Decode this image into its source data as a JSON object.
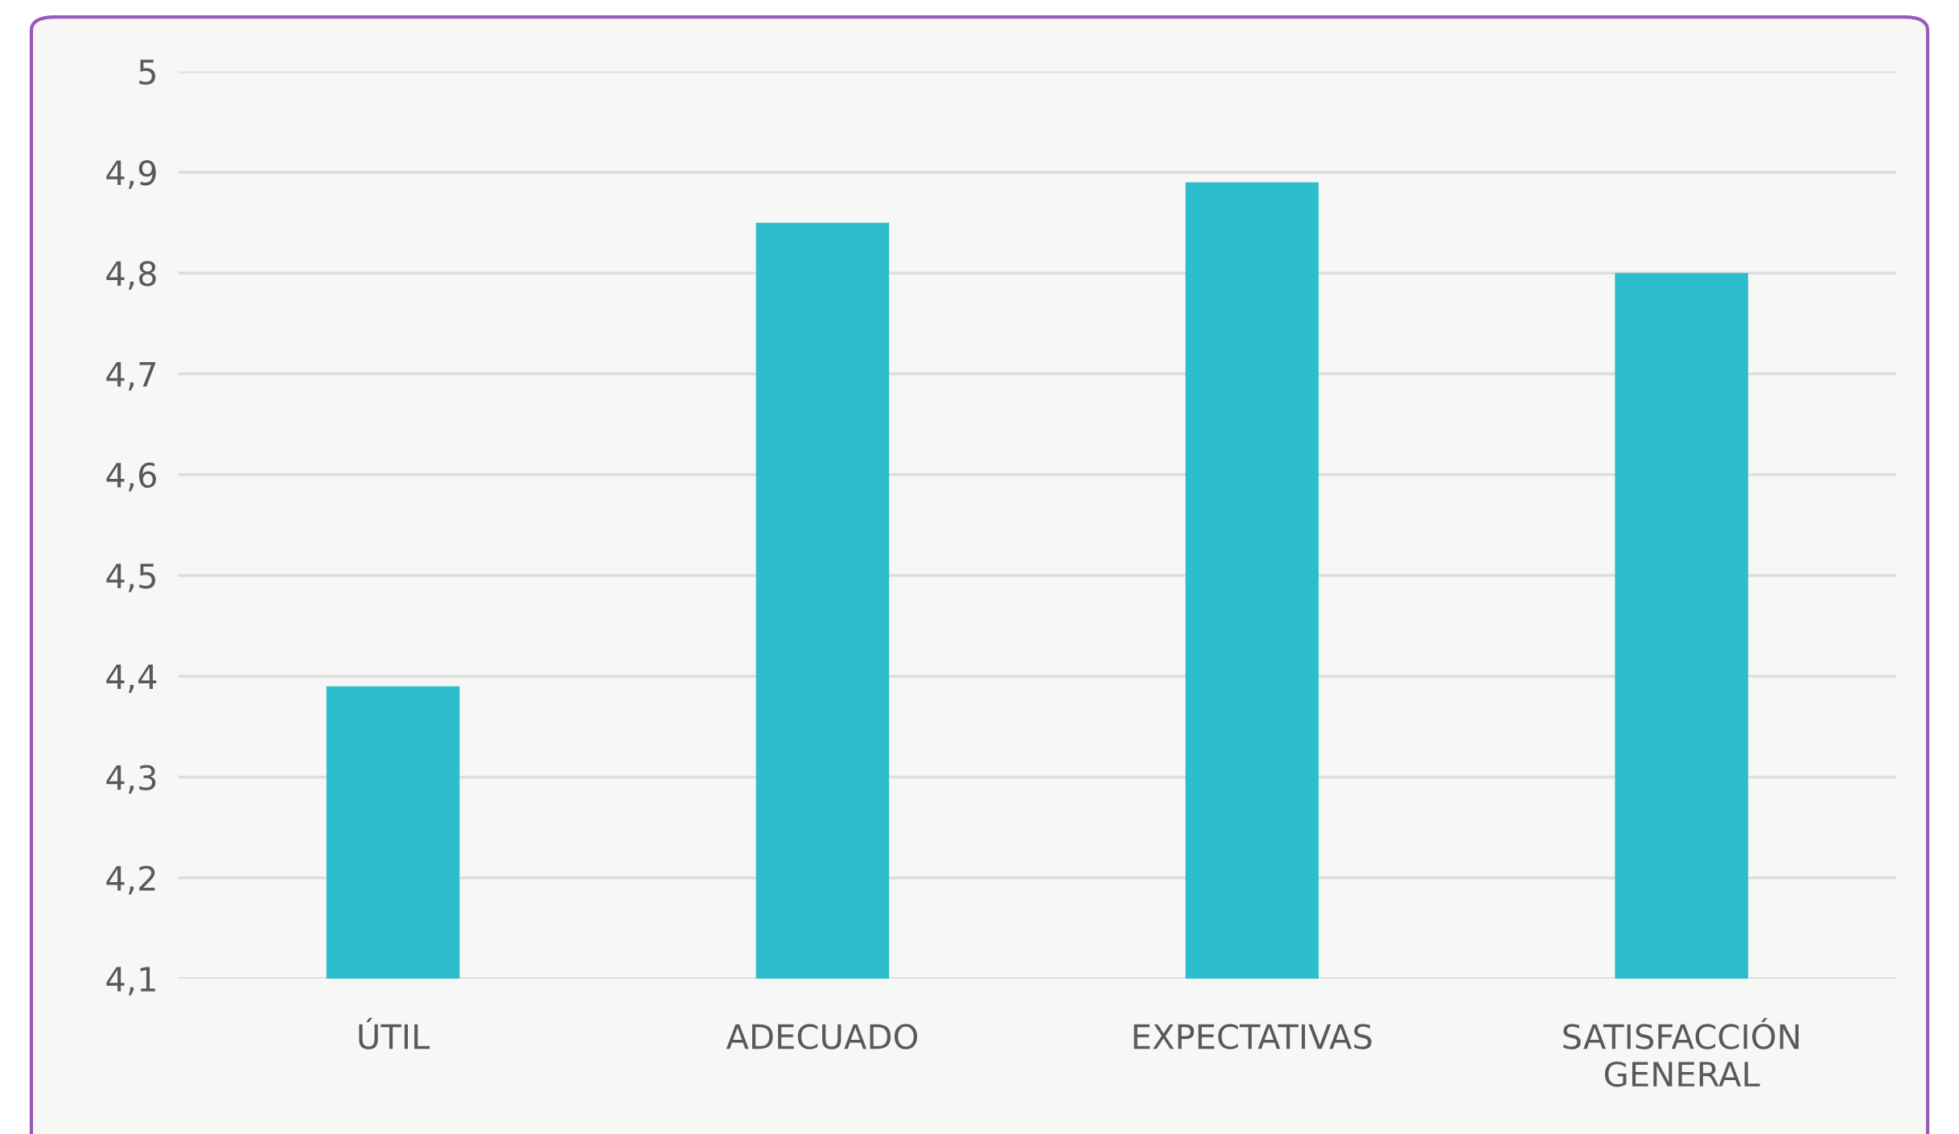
{
  "chart_data": {
    "type": "bar",
    "categories": [
      "ÚTIL",
      "ADECUADO",
      "EXPECTATIVAS",
      "SATISFACCIÓN\nGENERAL"
    ],
    "values": [
      4.39,
      4.85,
      4.89,
      4.8
    ],
    "color": "#2dbecd",
    "ylim": [
      4.1,
      5
    ],
    "yticks": [
      {
        "value": 4.1,
        "label": "4,1"
      },
      {
        "value": 4.2,
        "label": "4,2"
      },
      {
        "value": 4.3,
        "label": "4,3"
      },
      {
        "value": 4.4,
        "label": "4,4"
      },
      {
        "value": 4.5,
        "label": "4,5"
      },
      {
        "value": 4.6,
        "label": "4,6"
      },
      {
        "value": 4.7,
        "label": "4,7"
      },
      {
        "value": 4.8,
        "label": "4,8"
      },
      {
        "value": 4.9,
        "label": "4,9"
      },
      5
    ],
    "grid": "y",
    "legend": false
  }
}
